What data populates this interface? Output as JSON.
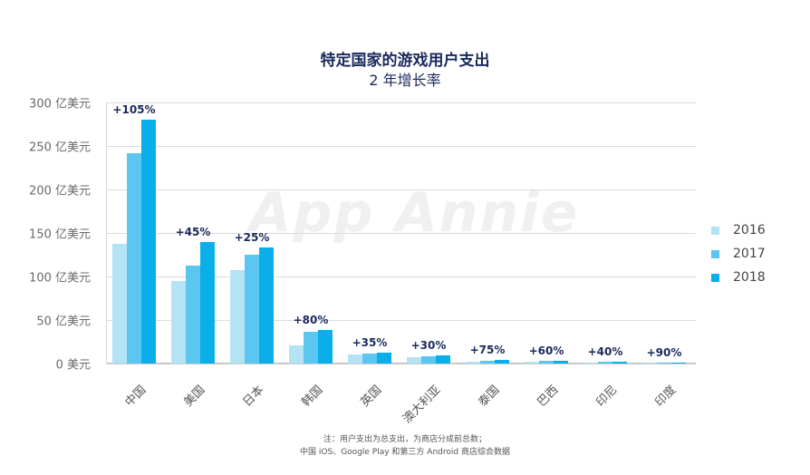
{
  "header": {
    "title": "特定国家的游戏用户支出",
    "subtitle": "2 年增长率"
  },
  "watermark": "App Annie",
  "y_axis": {
    "ticks": [
      {
        "value": 300,
        "label": "300 亿美元"
      },
      {
        "value": 250,
        "label": "250 亿美元"
      },
      {
        "value": 200,
        "label": "200 亿美元"
      },
      {
        "value": 150,
        "label": "150 亿美元"
      },
      {
        "value": 100,
        "label": "100 亿美元"
      },
      {
        "value": 50,
        "label": "50 亿美元"
      },
      {
        "value": 0,
        "label": "0 美元"
      }
    ]
  },
  "legend": [
    {
      "label": "2016",
      "color": "#b3e3f5"
    },
    {
      "label": "2017",
      "color": "#5bc6f0"
    },
    {
      "label": "2018",
      "color": "#0aafea"
    }
  ],
  "footnote": {
    "line1": "注：用户支出为总支出，为商店分成前总数；",
    "line2": "中国 iOS、Google Play 和第三方 Android 商店综合数据"
  },
  "chart_data": {
    "type": "bar",
    "title": "特定国家的游戏用户支出",
    "subtitle": "2 年增长率",
    "xlabel": "",
    "ylabel": "亿美元",
    "ylim": [
      0,
      300
    ],
    "grid": true,
    "legend_position": "right",
    "categories": [
      "中国",
      "美国",
      "日本",
      "韩国",
      "英国",
      "澳大利亚",
      "泰国",
      "巴西",
      "印尼",
      "印度"
    ],
    "series": [
      {
        "name": "2016",
        "color": "#b3e3f5",
        "values": [
          137,
          95,
          107,
          21,
          10,
          7,
          2,
          2,
          1,
          0.5
        ]
      },
      {
        "name": "2017",
        "color": "#5bc6f0",
        "values": [
          242,
          112,
          125,
          36,
          11,
          8,
          3,
          3,
          2,
          1
        ]
      },
      {
        "name": "2018",
        "color": "#0aafea",
        "values": [
          280,
          140,
          133,
          39,
          13,
          9,
          4,
          3,
          2,
          1
        ]
      }
    ],
    "annotations": [
      "+105%",
      "+45%",
      "+25%",
      "+80%",
      "+35%",
      "+30%",
      "+75%",
      "+60%",
      "+40%",
      "+90%"
    ]
  }
}
